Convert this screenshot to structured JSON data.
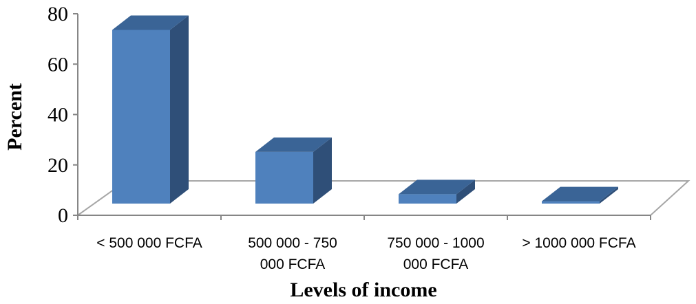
{
  "chart_data": {
    "type": "bar",
    "style": "3d-column",
    "title": "",
    "xlabel": "Levels of income",
    "ylabel": "Percent",
    "ylim": [
      0,
      80
    ],
    "yticks": [
      0,
      20,
      40,
      60,
      80
    ],
    "grid": false,
    "legend": "none",
    "categories": [
      [
        "< 500 000 FCFA"
      ],
      [
        "500 000 - 750",
        "000 FCFA"
      ],
      [
        "750 000 - 1000",
        "000 FCFA"
      ],
      [
        "> 1000 000 FCFA"
      ]
    ],
    "values": [
      74,
      22,
      4,
      1
    ],
    "colors": {
      "front": "#4F81BD",
      "side": "#2F4F78",
      "top": "#3A6496",
      "floor": "#A6A6A6"
    }
  }
}
